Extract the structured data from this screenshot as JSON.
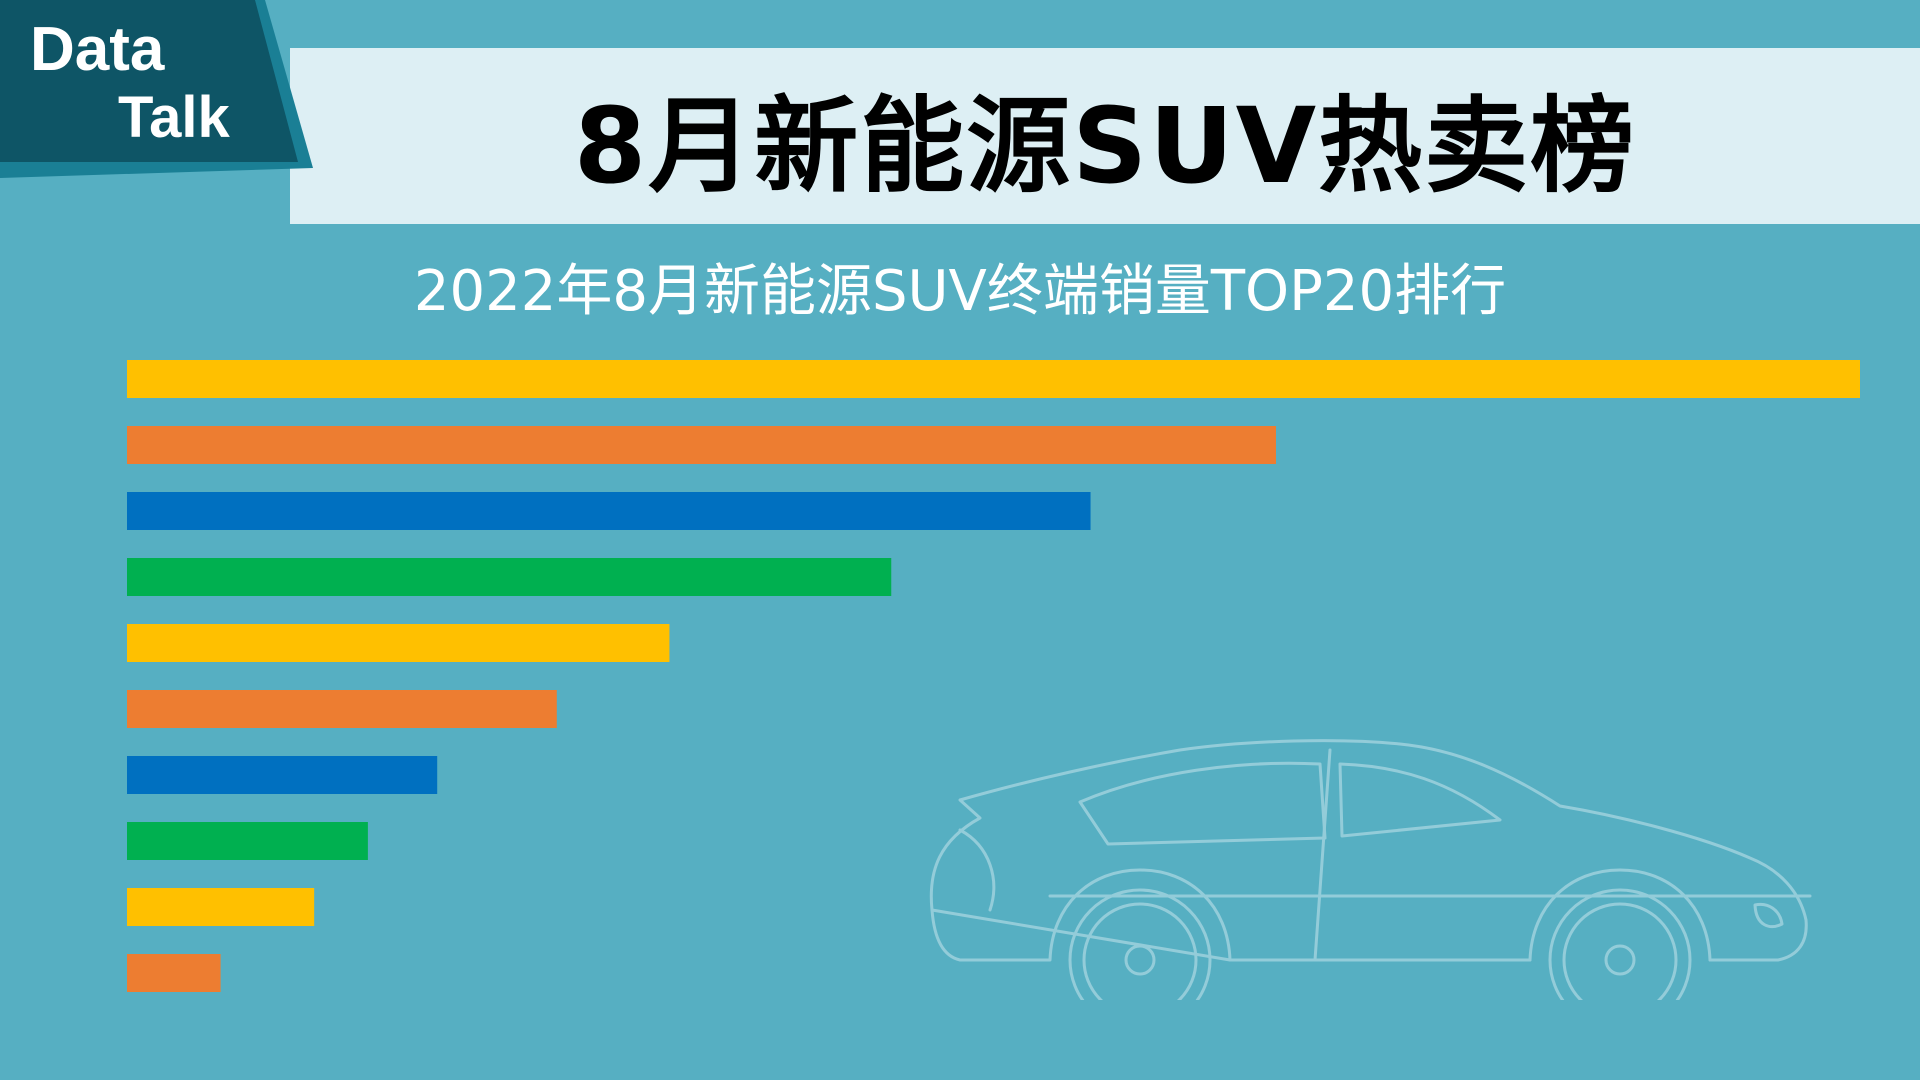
{
  "logo": {
    "line1": "Data",
    "line2": "Talk"
  },
  "header": {
    "title": "8月新能源SUV热卖榜"
  },
  "chart_data": {
    "type": "bar",
    "orientation": "horizontal",
    "title": "2022年8月新能源SUV终端销量TOP20排行",
    "categories": [
      "",
      "",
      "",
      "",
      "",
      "",
      "",
      "",
      "",
      ""
    ],
    "values": [
      100,
      66.3,
      55.6,
      44.1,
      31.3,
      24.8,
      17.9,
      13.9,
      10.8,
      5.4
    ],
    "colors": [
      "#FFC000",
      "#ED7D31",
      "#0070C0",
      "#00B050",
      "#FFC000",
      "#ED7D31",
      "#0070C0",
      "#00B050",
      "#FFC000",
      "#ED7D31"
    ],
    "xlim": [
      0,
      100
    ],
    "grid": false,
    "legend": "none"
  },
  "decoration": {
    "car_icon": "car-outline-icon"
  },
  "colors": {
    "background": "#56AFC2",
    "banner": "#DDEFF4",
    "logo_dark": "#0E5566",
    "logo_accent": "#1A7F95"
  }
}
